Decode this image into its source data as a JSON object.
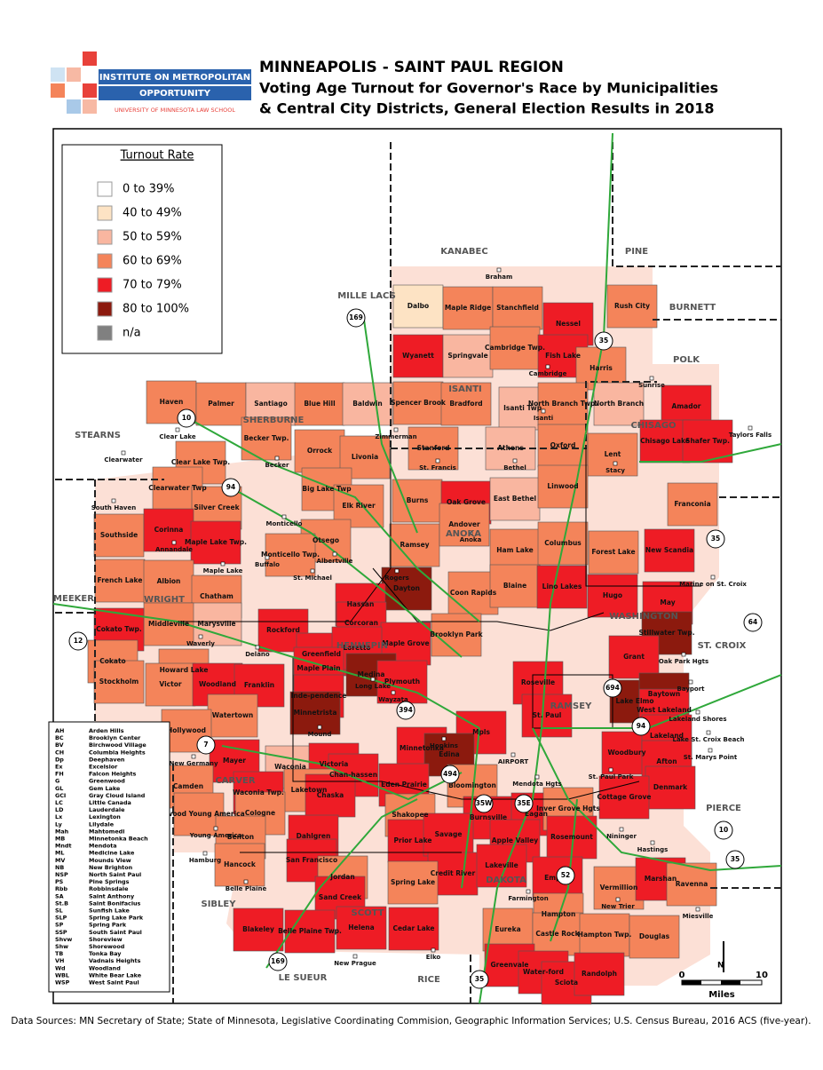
{
  "header": {
    "logo_line1": "INSTITUTE ON METROPOLITAN",
    "logo_line2": "OPPORTUNITY",
    "logo_line3": "UNIVERSITY OF MINNESOTA LAW SCHOOL",
    "title": "MINNEAPOLIS - SAINT PAUL REGION",
    "subtitle_1": "Voting Age Turnout for Governor's Race by Municipalities",
    "subtitle_2": "& Central City Districts, General Election Results in 2018"
  },
  "legend": {
    "title": "Turnout Rate",
    "items": [
      {
        "label": "0 to 39%",
        "color": "#ffffff"
      },
      {
        "label": "40 to 49%",
        "color": "#fde3c4"
      },
      {
        "label": "50 to 59%",
        "color": "#f9b6a0"
      },
      {
        "label": "60 to 69%",
        "color": "#f4845a"
      },
      {
        "label": "70 to 79%",
        "color": "#ee1c25"
      },
      {
        "label": "80 to 100%",
        "color": "#8c1a0e"
      },
      {
        "label": "n/a",
        "color": "#808080"
      }
    ]
  },
  "places": [
    {
      "name": "Dalbo",
      "class": 1
    },
    {
      "name": "Maple Ridge",
      "class": 3
    },
    {
      "name": "Stanchfield",
      "class": 3
    },
    {
      "name": "Nessel",
      "class": 4
    },
    {
      "name": "Rush City",
      "class": 3
    },
    {
      "name": "Wyanett",
      "class": 4
    },
    {
      "name": "Springvale",
      "class": 2
    },
    {
      "name": "Cambridge Twp.",
      "class": 3
    },
    {
      "name": "Fish Lake",
      "class": 4
    },
    {
      "name": "Harris",
      "class": 3
    },
    {
      "name": "Haven",
      "class": 3
    },
    {
      "name": "Palmer",
      "class": 3
    },
    {
      "name": "Santiago",
      "class": 2
    },
    {
      "name": "Blue Hill",
      "class": 3
    },
    {
      "name": "Baldwin",
      "class": 2
    },
    {
      "name": "Spencer Brook",
      "class": 3
    },
    {
      "name": "Bradford",
      "class": 3
    },
    {
      "name": "Isanti Twp.",
      "class": 2
    },
    {
      "name": "North Branch Twp.",
      "class": 3
    },
    {
      "name": "North Branch",
      "class": 2
    },
    {
      "name": "Amador",
      "class": 4
    },
    {
      "name": "Becker Twp.",
      "class": 3
    },
    {
      "name": "Orrock",
      "class": 3
    },
    {
      "name": "Livonia",
      "class": 3
    },
    {
      "name": "Stanford",
      "class": 3
    },
    {
      "name": "Athens",
      "class": 2
    },
    {
      "name": "Oxford",
      "class": 3
    },
    {
      "name": "Chisago Lake",
      "class": 4
    },
    {
      "name": "Shafer Twp.",
      "class": 4
    },
    {
      "name": "Lent",
      "class": 3
    },
    {
      "name": "Clear Lake Twp.",
      "class": 3
    },
    {
      "name": "Clearwater Twp",
      "class": 3
    },
    {
      "name": "Big Lake Twp",
      "class": 3
    },
    {
      "name": "Elk River",
      "class": 3
    },
    {
      "name": "Burns",
      "class": 3
    },
    {
      "name": "Oak Grove",
      "class": 4
    },
    {
      "name": "East Bethel",
      "class": 2
    },
    {
      "name": "Linwood",
      "class": 3
    },
    {
      "name": "Franconia",
      "class": 3
    },
    {
      "name": "Silver Creek",
      "class": 3
    },
    {
      "name": "Southside",
      "class": 3
    },
    {
      "name": "Corinna",
      "class": 4
    },
    {
      "name": "Otsego",
      "class": 3
    },
    {
      "name": "Ramsey",
      "class": 3
    },
    {
      "name": "Andover",
      "class": 3
    },
    {
      "name": "Ham Lake",
      "class": 3
    },
    {
      "name": "Columbus",
      "class": 3
    },
    {
      "name": "Forest Lake",
      "class": 3
    },
    {
      "name": "New Scandia",
      "class": 4
    },
    {
      "name": "Maple Lake Twp.",
      "class": 4
    },
    {
      "name": "Monticello Twp.",
      "class": 3
    },
    {
      "name": "French Lake",
      "class": 3
    },
    {
      "name": "Albion",
      "class": 3
    },
    {
      "name": "Dayton",
      "class": 5
    },
    {
      "name": "Coon Rapids",
      "class": 3
    },
    {
      "name": "Blaine",
      "class": 3
    },
    {
      "name": "Lino Lakes",
      "class": 4
    },
    {
      "name": "Hugo",
      "class": 4
    },
    {
      "name": "Chatham",
      "class": 3
    },
    {
      "name": "Hassan",
      "class": 4
    },
    {
      "name": "May",
      "class": 4
    },
    {
      "name": "Marysville",
      "class": 2
    },
    {
      "name": "Middleville",
      "class": 3
    },
    {
      "name": "Cokato Twp.",
      "class": 4
    },
    {
      "name": "Rockford",
      "class": 4
    },
    {
      "name": "Corcoran",
      "class": 4
    },
    {
      "name": "Brooklyn Park",
      "class": 3
    },
    {
      "name": "Maple Grove",
      "class": 4
    },
    {
      "name": "Stillwater Twp.",
      "class": 5
    },
    {
      "name": "Greenfield",
      "class": 4
    },
    {
      "name": "Loretto",
      "class": 4
    },
    {
      "name": "Grant",
      "class": 4
    },
    {
      "name": "Cokato",
      "class": 3
    },
    {
      "name": "Howard Lake",
      "class": 3
    },
    {
      "name": "Maple Plain",
      "class": 4
    },
    {
      "name": "Medina",
      "class": 5
    },
    {
      "name": "Plymouth",
      "class": 4
    },
    {
      "name": "Stockholm",
      "class": 3
    },
    {
      "name": "Victor",
      "class": 3
    },
    {
      "name": "Woodland",
      "class": 4
    },
    {
      "name": "Franklin",
      "class": 4
    },
    {
      "name": "Inde-pendence",
      "class": 4
    },
    {
      "name": "Roseville",
      "class": 4
    },
    {
      "name": "Lake Elmo",
      "class": 5
    },
    {
      "name": "Baytown",
      "class": 5
    },
    {
      "name": "Minnetrista",
      "class": 5
    },
    {
      "name": "St. Paul",
      "class": 4
    },
    {
      "name": "West Lakeland",
      "class": 4
    },
    {
      "name": "Watertown",
      "class": 3
    },
    {
      "name": "Hollywood",
      "class": 3
    },
    {
      "name": "Mpls",
      "class": 4
    },
    {
      "name": "Woodbury",
      "class": 4
    },
    {
      "name": "Lakeland",
      "class": 4
    },
    {
      "name": "Minnetonka",
      "class": 4
    },
    {
      "name": "Edina",
      "class": 5
    },
    {
      "name": "Mayer",
      "class": 4
    },
    {
      "name": "Waconia",
      "class": 2
    },
    {
      "name": "Victoria",
      "class": 4
    },
    {
      "name": "Chan-hassen",
      "class": 4
    },
    {
      "name": "Eden Prairie",
      "class": 4
    },
    {
      "name": "Afton",
      "class": 4
    },
    {
      "name": "Camden",
      "class": 3
    },
    {
      "name": "Waconia Twp.",
      "class": 4
    },
    {
      "name": "Laketown",
      "class": 3
    },
    {
      "name": "Chaska",
      "class": 4
    },
    {
      "name": "Bloomington",
      "class": 3
    },
    {
      "name": "Denmark",
      "class": 4
    },
    {
      "name": "Cottage Grove",
      "class": 4
    },
    {
      "name": "Norwood Young America",
      "class": 3
    },
    {
      "name": "Cologne",
      "class": 3
    },
    {
      "name": "Shakopee",
      "class": 3
    },
    {
      "name": "Burnsville",
      "class": 4
    },
    {
      "name": "Eagan",
      "class": 4
    },
    {
      "name": "Inver Grove Hgts",
      "class": 3
    },
    {
      "name": "Dahlgren",
      "class": 4
    },
    {
      "name": "Prior Lake",
      "class": 4
    },
    {
      "name": "Savage",
      "class": 4
    },
    {
      "name": "Apple Valley",
      "class": 4
    },
    {
      "name": "Rosemount",
      "class": 4
    },
    {
      "name": "Benton",
      "class": 3
    },
    {
      "name": "Hancock",
      "class": 3
    },
    {
      "name": "San Francisco",
      "class": 4
    },
    {
      "name": "Credit River",
      "class": 4
    },
    {
      "name": "Lakeville",
      "class": 4
    },
    {
      "name": "Jordan",
      "class": 3
    },
    {
      "name": "Spring Lake",
      "class": 3
    },
    {
      "name": "Empire",
      "class": 4
    },
    {
      "name": "Vermillion",
      "class": 3
    },
    {
      "name": "Marshan",
      "class": 4
    },
    {
      "name": "Ravenna",
      "class": 3
    },
    {
      "name": "Sand Creek",
      "class": 4
    },
    {
      "name": "Hampton",
      "class": 3
    },
    {
      "name": "Blakeley",
      "class": 4
    },
    {
      "name": "Belle Plaine Twp.",
      "class": 4
    },
    {
      "name": "Helena",
      "class": 4
    },
    {
      "name": "Cedar Lake",
      "class": 4
    },
    {
      "name": "Eureka",
      "class": 3
    },
    {
      "name": "Castle Rock",
      "class": 3
    },
    {
      "name": "Hampton Twp.",
      "class": 3
    },
    {
      "name": "Douglas",
      "class": 3
    },
    {
      "name": "Greenvale",
      "class": 4
    },
    {
      "name": "Water-ford",
      "class": 4
    },
    {
      "name": "Sciota",
      "class": 4
    },
    {
      "name": "Randolph",
      "class": 4
    }
  ],
  "towns": [
    "Braham",
    "Taylors Falls",
    "Stacy",
    "Zimmerman",
    "South Haven",
    "Clearwater",
    "St. Francis",
    "Bethel",
    "Cambridge",
    "Isanti",
    "Albertville",
    "Buffalo",
    "Monticello",
    "Becker",
    "Clear Lake",
    "Sunrise",
    "Marine on St. Croix",
    "Bayport",
    "Oak Park Hgts",
    "Lakeland Shores",
    "Lake St. Croix Beach",
    "St. Marys Point",
    "New Germany",
    "Hamburg",
    "Belle Plaine",
    "New Prague",
    "Elko",
    "Miesville",
    "New Trier",
    "Farmington",
    "Hastings",
    "Nininger",
    "Young America",
    "St. Paul Park",
    "Mendota Hgts",
    "AIRPORT",
    "Rogers",
    "Anoka",
    "St. Michael",
    "Maple Lake",
    "Annandale",
    "Waverly",
    "Delano",
    "Long Lake",
    "Wayzata",
    "Mound",
    "Hopkins"
  ],
  "counties": [
    "KANABEC",
    "PINE",
    "MILLE LACS",
    "BURNETT",
    "POLK",
    "ISANTI",
    "SHERBURNE",
    "CHISAGO",
    "STEARNS",
    "ANOKA",
    "MEEKER",
    "WRIGHT",
    "HENNEPIN",
    "WASHINGTON",
    "ST. CROIX",
    "RAMSEY",
    "CARVER",
    "PIERCE",
    "DAKOTA",
    "SCOTT",
    "SIBLEY",
    "LE SUEUR",
    "RICE"
  ],
  "highways": [
    "10",
    "94",
    "169",
    "35",
    "35",
    "64",
    "12",
    "7",
    "394",
    "494",
    "35W",
    "35E",
    "52",
    "694",
    "94",
    "10",
    "35",
    "169",
    "35"
  ],
  "abbreviations": [
    {
      "abbr": "AH",
      "name": "Arden Hills"
    },
    {
      "abbr": "BC",
      "name": "Brooklyn Center"
    },
    {
      "abbr": "BV",
      "name": "Birchwood Village"
    },
    {
      "abbr": "CH",
      "name": "Columbia Heights"
    },
    {
      "abbr": "Dp",
      "name": "Deephaven"
    },
    {
      "abbr": "Ex",
      "name": "Excelsior"
    },
    {
      "abbr": "FH",
      "name": "Falcon Heights"
    },
    {
      "abbr": "G",
      "name": "Greenwood"
    },
    {
      "abbr": "GL",
      "name": "Gem Lake"
    },
    {
      "abbr": "GCI",
      "name": "Gray Cloud Island"
    },
    {
      "abbr": "LC",
      "name": "Little Canada"
    },
    {
      "abbr": "LD",
      "name": "Lauderdale"
    },
    {
      "abbr": "Lx",
      "name": "Lexington"
    },
    {
      "abbr": "Ly",
      "name": "Lilydale"
    },
    {
      "abbr": "Mah",
      "name": "Mahtomedi"
    },
    {
      "abbr": "MB",
      "name": "Minnetonka Beach"
    },
    {
      "abbr": "Mndt",
      "name": "Mendota"
    },
    {
      "abbr": "ML",
      "name": "Medicine Lake"
    },
    {
      "abbr": "MV",
      "name": "Mounds View"
    },
    {
      "abbr": "NB",
      "name": "New Brighton"
    },
    {
      "abbr": "NSP",
      "name": "North Saint Paul"
    },
    {
      "abbr": "PS",
      "name": "Pine Springs"
    },
    {
      "abbr": "Rbb",
      "name": "Robbinsdale"
    },
    {
      "abbr": "SA",
      "name": "Saint Anthony"
    },
    {
      "abbr": "St.B",
      "name": "Saint Bonifacius"
    },
    {
      "abbr": "SL",
      "name": "Sunfish Lake"
    },
    {
      "abbr": "SLP",
      "name": "Spring Lake Park"
    },
    {
      "abbr": "SP",
      "name": "Spring Park"
    },
    {
      "abbr": "SSP",
      "name": "South Saint Paul"
    },
    {
      "abbr": "Shvw",
      "name": "Shoreview"
    },
    {
      "abbr": "Shw",
      "name": "Shorewood"
    },
    {
      "abbr": "TB",
      "name": "Tonka Bay"
    },
    {
      "abbr": "VH",
      "name": "Vadnais Heights"
    },
    {
      "abbr": "Wd",
      "name": "Woodland"
    },
    {
      "abbr": "WBL",
      "name": "White Bear Lake"
    },
    {
      "abbr": "WSP",
      "name": "West Saint Paul"
    }
  ],
  "scale_bar": {
    "north": "N",
    "start": "0",
    "end": "10",
    "unit": "Miles"
  },
  "footer": {
    "sources": "Data Sources:  MN Secretary of State; State of Minnesota, Legislative Coordinating Commision, Geographic Information Services; U.S. Census Bureau, 2016 ACS (five-year)."
  }
}
